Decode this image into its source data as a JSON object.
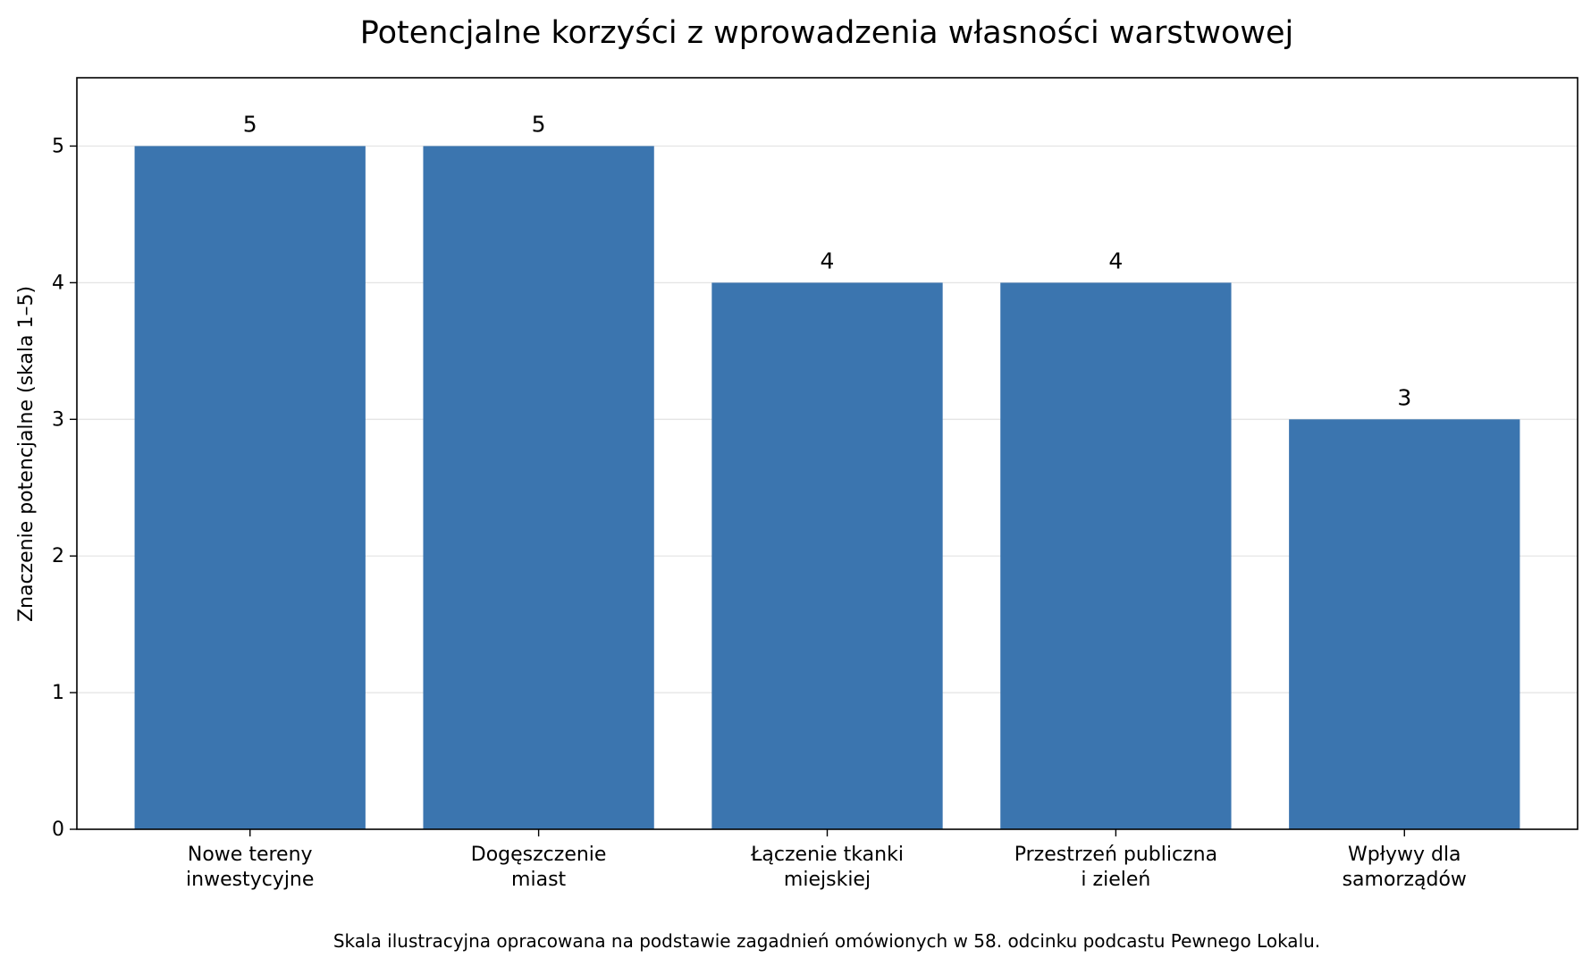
{
  "chart_data": {
    "type": "bar",
    "title": "Potencjalne korzyści z wprowadzenia własności warstwowej",
    "ylabel": "Znaczenie potencjalne (skala 1–5)",
    "xlabel": "",
    "categories": [
      [
        "Nowe tereny",
        "inwestycyjne"
      ],
      [
        "Dogęszczenie",
        "miast"
      ],
      [
        "Łączenie tkanki",
        "miejskiej"
      ],
      [
        "Przestrzeń publiczna",
        "i zieleń"
      ],
      [
        "Wpływy dla",
        "samorządów"
      ]
    ],
    "values": [
      5,
      5,
      4,
      4,
      3
    ],
    "data_labels": [
      "5",
      "5",
      "4",
      "4",
      "3"
    ],
    "ylim": [
      0,
      5.5
    ],
    "yticks": [
      0,
      1,
      2,
      3,
      4,
      5
    ],
    "grid": "horizontal",
    "bar_color": "#3b75af",
    "footnote": "Skala ilustracyjna opracowana na podstawie zagadnień omówionych w 58. odcinku podcastu Pewnego Lokalu."
  }
}
